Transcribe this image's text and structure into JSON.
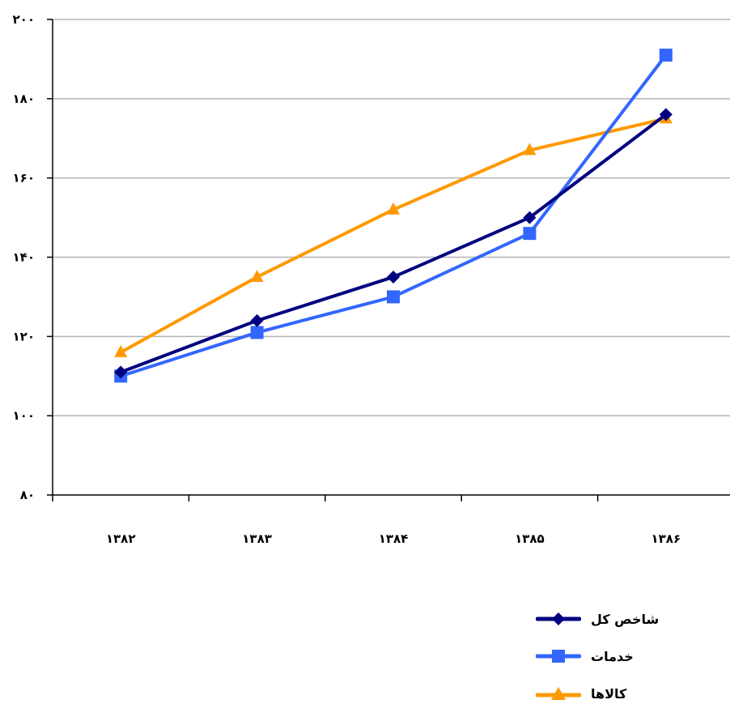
{
  "chart_data": {
    "type": "line",
    "title": "",
    "xlabel": "",
    "ylabel": "",
    "categories": [
      "۱۳۸۲",
      "۱۳۸۳",
      "۱۳۸۴",
      "۱۳۸۵",
      "۱۳۸۶"
    ],
    "y_ticks": [
      "۸۰",
      "۱۰۰",
      "۱۲۰",
      "۱۴۰",
      "۱۶۰",
      "۱۸۰",
      "۲۰۰"
    ],
    "ylim": [
      80,
      200
    ],
    "grid": true,
    "legend_position": "bottom-right",
    "series": [
      {
        "name": "شاخص کل",
        "color": "#000080",
        "marker": "diamond",
        "values": [
          111,
          124,
          135,
          150,
          176
        ]
      },
      {
        "name": "خدمات",
        "color": "#3366FF",
        "marker": "square",
        "values": [
          110,
          121,
          130,
          146,
          191
        ]
      },
      {
        "name": "کالاها",
        "color": "#FF9900",
        "marker": "triangle",
        "values": [
          116,
          135,
          152,
          167,
          175
        ]
      }
    ]
  }
}
